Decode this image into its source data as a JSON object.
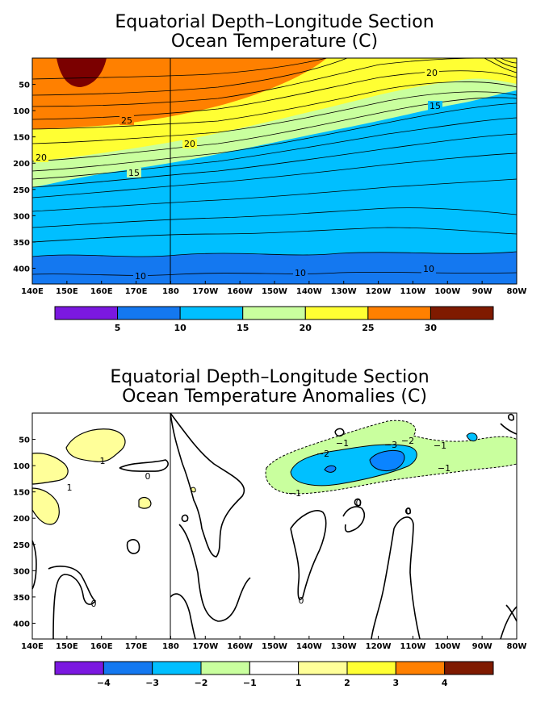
{
  "colors": {
    "p5": "#7f1a00",
    "p4": "#ff8000",
    "p3": "#ffff33",
    "p2": "#c9ff9e",
    "p1": "#00bfff",
    "p0": "#1478f0",
    "pm": "#7b18e0",
    "dark": "#7b0000",
    "anom_pos1": "#ffff99",
    "white": "#ffffff",
    "lightblue": "#00c0ff",
    "midblue": "#0a84ff"
  },
  "chart_data": [
    {
      "type": "heatmap",
      "title": [
        "Equatorial Depth–Longitude Section",
        "Ocean Temperature (C)"
      ],
      "x_ticks": [
        "140E",
        "150E",
        "160E",
        "170E",
        "180",
        "170W",
        "160W",
        "150W",
        "140W",
        "130W",
        "120W",
        "110W",
        "100W",
        "90W",
        "80W"
      ],
      "y_ticks": [
        "50",
        "100",
        "150",
        "200",
        "250",
        "300",
        "350",
        "400"
      ],
      "xlim": [
        "140E",
        "80W"
      ],
      "ylim_depth_m": [
        0,
        430
      ],
      "colorbar": {
        "labels": [
          "5",
          "10",
          "15",
          "20",
          "25",
          "30"
        ],
        "colors": [
          "#7b18e0",
          "#1478f0",
          "#00bfff",
          "#c9ff9e",
          "#ffff33",
          "#ff8000",
          "#7f1a00"
        ]
      },
      "contour_labels": [
        "20",
        "15",
        "25",
        "20",
        "20",
        "15",
        "10",
        "10",
        "10"
      ]
    },
    {
      "type": "heatmap",
      "title": [
        "Equatorial Depth–Longitude Section",
        "Ocean Temperature Anomalies (C)"
      ],
      "x_ticks": [
        "140E",
        "150E",
        "160E",
        "170E",
        "180",
        "170W",
        "160W",
        "150W",
        "140W",
        "130W",
        "120W",
        "110W",
        "100W",
        "90W",
        "80W"
      ],
      "y_ticks": [
        "50",
        "100",
        "150",
        "200",
        "250",
        "300",
        "350",
        "400"
      ],
      "xlim": [
        "140E",
        "80W"
      ],
      "ylim_depth_m": [
        0,
        430
      ],
      "colorbar": {
        "labels": [
          "−4",
          "−3",
          "−2",
          "−1",
          "1",
          "2",
          "3",
          "4"
        ],
        "colors": [
          "#7b18e0",
          "#1478f0",
          "#00bfff",
          "#c9ff9e",
          "#ffffff",
          "#ffff99",
          "#ffff33",
          "#ff8000",
          "#7f1a00"
        ]
      },
      "contour_labels": [
        "1",
        "1",
        "0",
        "−1",
        "−2",
        "−3",
        "−2",
        "−1",
        "−1",
        "−1",
        "0",
        "0",
        "0",
        "0"
      ]
    }
  ]
}
